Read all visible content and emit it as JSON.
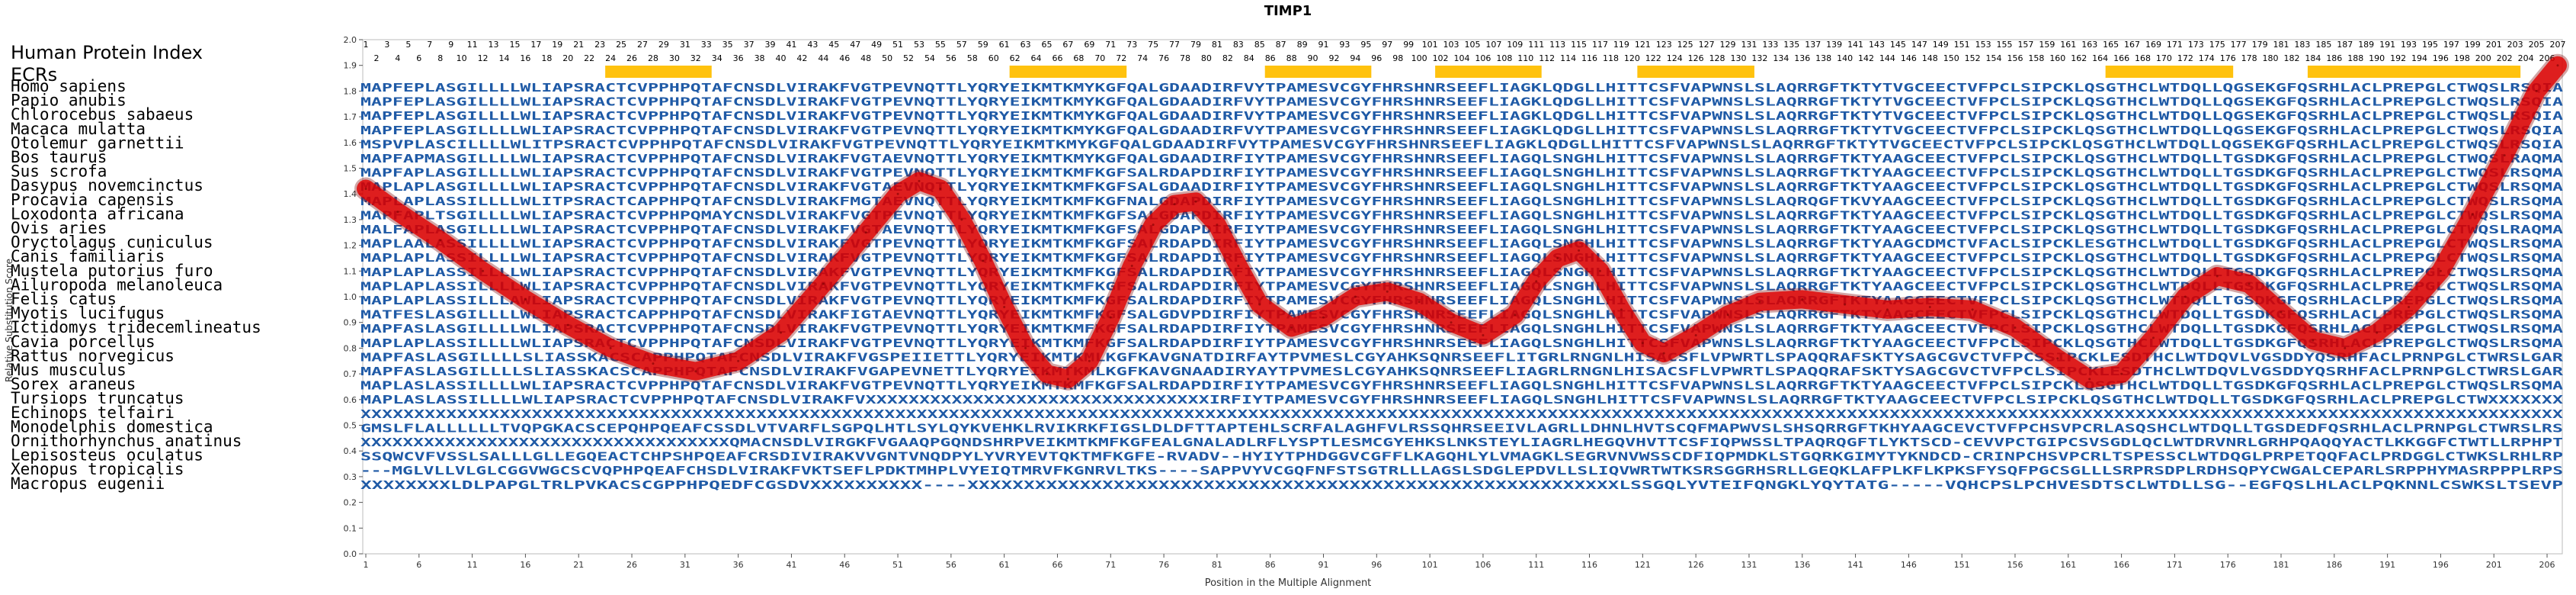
{
  "chart_data": {
    "type": "line",
    "title": "TIMP1",
    "xlabel": "Position in the Multiple Alignment",
    "ylabel": "Relative Substitution Score",
    "ylim": [
      0.0,
      2.0
    ],
    "y_ticks": [
      0.0,
      0.1,
      0.2,
      0.3,
      0.4,
      0.5,
      0.6,
      0.7,
      0.8,
      0.9,
      1.0,
      1.1,
      1.2,
      1.3,
      1.4,
      1.5,
      1.6,
      1.7,
      1.8,
      1.9,
      2.0
    ],
    "xlim": [
      1,
      207
    ],
    "x_ticks": [
      1,
      6,
      11,
      16,
      21,
      26,
      31,
      36,
      41,
      46,
      51,
      56,
      61,
      66,
      71,
      76,
      81,
      86,
      91,
      96,
      101,
      106,
      111,
      116,
      121,
      126,
      131,
      136,
      141,
      146,
      151,
      156,
      161,
      166,
      171,
      176,
      181,
      186,
      191,
      196,
      201,
      206
    ],
    "index_label": "Human Protein Index",
    "ecr_label": "ECRs",
    "index_numbers": [
      1,
      3,
      5,
      7,
      9,
      11,
      13,
      15,
      17,
      19,
      21,
      23,
      25,
      27,
      29,
      31,
      33,
      35,
      37,
      39,
      41,
      43,
      45,
      47,
      49,
      51,
      53,
      55,
      57,
      59,
      61,
      63,
      65,
      67,
      69,
      71,
      73,
      75,
      77,
      79,
      81,
      83,
      85,
      87,
      89,
      91,
      93,
      95,
      97,
      99,
      101,
      103,
      105,
      107,
      109,
      111,
      113,
      115,
      117,
      119,
      121,
      123,
      125,
      127,
      129,
      131,
      133,
      135,
      137,
      139,
      141,
      143,
      145,
      147,
      149,
      151,
      153,
      155,
      157,
      159,
      161,
      163,
      165,
      167,
      169,
      171,
      173,
      175,
      177,
      179,
      181,
      183,
      185,
      187,
      189,
      191,
      193,
      195,
      197,
      199,
      201,
      203,
      205,
      207
    ],
    "ecr_regions": [
      [
        24,
        33
      ],
      [
        62,
        72
      ],
      [
        86,
        95
      ],
      [
        102,
        111
      ],
      [
        121,
        131
      ],
      [
        165,
        176
      ],
      [
        184,
        203
      ]
    ],
    "sequences": [
      {
        "name": "Homo sapiens",
        "seq": "MAPFEPLASGILLLLWLIAPSRACTCVPPHPQTAFCNSDLVIRAKFVGTPEVNQTTLYQRYEIKMTKMYKGFQALGDAADIRFVYTPAMESVCGYFHRSHNRSEEFLIAGKLQDGLLHITTCSFVAPWNSLSLAQRRGFTKTYTVGCEECTVFPCLSIPCKLQSGTHCLWTDQLLQGSEKGFQSRHLACLPREPGLCTWQSLRSQIA"
      },
      {
        "name": "Papio anubis",
        "seq": "MAPFEPLASGILLLLWLIAPSRACTCVPPHPQTAFCNSDLVIRAKFVGTPEVNQTTLYQRYEIKMTKMYKGFQALGDAADIRFVYTPAMESVCGYFHRSHNRSEEFLIAGKLQDGLLHITTCSFVAPWNSLSLAQRRGFTKTYTVGCEECTVFPCLSIPCKLQSGTHCLWTDQLLQGSEKGFQSRHLACLPREPGLCTWQSLRSQIA"
      },
      {
        "name": "Chlorocebus sabaeus",
        "seq": "MAPFEPLASGILLLLWLIAPSRACTCVPPHPQTAFCNSDLVIRAKFVGTPEVNQTTLYQRYEIKMTKMYKGFQALGDAADIRFVYTPAMESVCGYFHRSHNRSEEFLIAGKLQDGLLHITTCSFVAPWNSLSLAQRRGFTKTYTVGCEECTVFPCLSIPCKLQSGTHCLWTDQLLQGSEKGFQSRHLACLPREPGLCTWQSLRSQIA"
      },
      {
        "name": "Macaca mulatta",
        "seq": "MAPFEPLASGILLLLWLIAPSRACTCVPPHPQTAFCNSDLVIRAKFVGTPEVNQTTLYQRYEIKMTKMYKGFQALGDAADIRFVYTPAMESVCGYFHRSHNRSEEFLIAGKLQDGLLHITTCSFVAPWNSLSLAQRRGFTKTYTVGCEECTVFPCLSIPCKLQSGTHCLWTDQLLQGSEKGFQSRHLACLPREPGLCTWQSLRSQIA"
      },
      {
        "name": "Otolemur garnettii",
        "seq": "MSPVPLASCILLLLWLITPSRACTCVPPHPQTAFCNSDLVIRAKFVGTPEVNQTTLYQRYEIKMTKMYKGFQALGDAADIRFVYTPAMESVCGYFHRSHNRSEEFLIAGKLQDGLLHITTCSFVAPWNSLSLAQRRGFTKTYTVGCEECTVFPCLSIPCKLQSGTHCLWTDQLLQGSEKGFQSRHLACLPREPGLCTWQSLRSQIA"
      },
      {
        "name": "Bos taurus",
        "seq": "MAPFAPMASGILLLLWLIAPSRACTCVPPHPQTAFCNSDLVIRAKFVGTAEVNQTTLYQRYEIKMTKMYKGFQALGDAADIRFIYTPAMESVCGYFHRSHNRSEEFLIAGQLSNGHLHITTCSFVAPWNSLSLAQRRGFTKTYAAGCEECTVFPCLSIPCKLQSGTHCLWTDQLLTGSDKGFQSRHLACLPREPGLCTWQSLRAQMA"
      },
      {
        "name": "Sus scrofa",
        "seq": "MAPFAPLASGILLLLWLIAPSRACTCVPPHPQTAFCNSDLVIRAKFVGTPEVNQTTLYQRYEIKMTKMFKGFSALRDAPDIRFIYTPAMESVCGYFHRSHNRSEEFLIAGQLSNGHLHITTCSFVAPWNSLSLAQRRGFTKTYAAGCEECTVFPCLSIPCKLQSGTHCLWTDQLLTGSDKGFQSRHLACLPREPGLCTWQSLRSQMA"
      },
      {
        "name": "Dasypus novemcinctus",
        "seq": "MAPLAPLASGILLLLWLIAPSRACTCVPPHPQTAFCNSDLVIRAKFVGTAEVNQTTLYQRYEIKMTKMFKGFSALGDAADIRFIYTPAMESVCGYFHRSHNRSEEFLIAGQLSNGHLHITTCSFVAPWNSLSLAQRRGFTKTYAAGCEECTVFPCLSIPCKLQSGTHCLWTDQLLTGSDKGFQSRHLACLPREPGLCTWQSLRSQMA"
      },
      {
        "name": "Procavia capensis",
        "seq": "MAPLAPLASSILLLLWLITPSRACTCAPPHPQTAFCNSDLVIRAKFMGTAEVNQTTLYQRYEIKMTKMFKGFNALGDAPDIRFIYTPAMESVCGYFHRSHNRSEEFLIAGQLSNGHLHITTCSFVAPWNSLSLAQRQGFTKVYAAGCEECTVFPCLSIPCKLQSGTHCLWTDQLLTGSDKGFQSRHLACLPREPGLCTWQSLRSQMA"
      },
      {
        "name": "Loxodonta africana",
        "seq": "MAPFAPLTSGILLLLWLIAPSRACTCVPPHPQMAYCNSDLVIRAKFVGTPEVNQTTLYQRYEIKMTKMFKGFSALGDAPDIRFIYTPAMESVCGYFHRSHNRSEEFLIAGQLSNGHLHITTCSFVAPWNSLSLAQRRGFTKTYAAGCEECTVFPCLSIPCKLQSGTHCLWTDQLLTGSDKGFQSRHLACLPREPGLCTWQSLRSQMA"
      },
      {
        "name": "Ovis aries",
        "seq": "MALFAPLASGILLLLWLIAPSRACTCVPPHPQTAFCNSDLVIRAKFVGTAEVNQTTLYQRYEIKMTKMFKGFSALGDAPDIRFIYTPAMESVCGYFHRSHNRSEEFLIAGQLSNGHLHITTCSFVAPWNSLSLAQRRGFTKTYAAGCEECTVFPCLSIPCKLQSGTHCLWTDQLLTGSDKGFQSRHLACLPREPGLCTWQSLRAQMA"
      },
      {
        "name": "Oryctolagus cuniculus",
        "seq": "MAPLAALASSILLLLWLIAPSRACTCVPPHPQTAFCNSDLVIRAKFVGTPEVNQTTLYQRYEIKMTKMFKGFSALRDAPDIRFIYTPAMESVCGYFHRSHNRSEEFLIAGQLSNGHLHITTCSFVAPWNSLSLAQRRGFTKTYAAGCDMCTVFACLSIPCKLESGTHCLWTDQLLTGSDKGFQSRHLACLPREPGLCTWQSLRSQMA"
      },
      {
        "name": "Canis familiaris",
        "seq": "MAPLAPLASSILLLLWLIAPSRACTCVPPHPQTAFCNSDLVIRAKFVGTPEVNQTTLYQRYEIKMTKMFKGFSALRDAPDIRFIYTPAMESVCGYFHRSHNRSEEFLIAGQLSNGHLHITTCSFVAPWNSLSLAQRRGFTKTYAAGCEECTVFPCLSIPCKLQSGTHCLWTDQLLTGSDKGFQSRHLACLPREPGLCTWQSLRSQMA"
      },
      {
        "name": "Mustela putorius furo",
        "seq": "MAPLAPLASSILLLLWLIAPSRACTCVPPHPQTAFCNSDLVIRAKFVGTPEVNQTTLYQRYEIKMTKMFKGFSALRDAPDIRFIYTPAMESVCGYFHRSHNRSEEFLIAGQLSNGHLHITTCSFVAPWNSLSLAQRRGFTKTYAAGCEECTVFPCLSIPCKLQSGTHCLWTDQLLTGSDKGFQSRHLACLPREPGLCTWQSLRSQMA"
      },
      {
        "name": "Ailuropoda melanoleuca",
        "seq": "MAPLAPLASSILLLLWLIAPSRACTCVPPHPQTAFCNSDLVIRAKFVGTPEVNQTTLYQRYEIKMTKMFKGFSALRDAPDIRFIYTPAMESVCGYFHRSHNRSEEFLIAGQLSNGHLHITTCSFVAPWNSLSLAQRRGFTKTYAAGCEECTVFPCLSIPCKLQSGTHCLWTDQLLTGSDKGFQSRHLACLPREPGLCTWQSLRSQMA"
      },
      {
        "name": "Felis catus",
        "seq": "MAPLAPLASSILLLAWLIAPSRACTCVPPHPQTAFCNSDLVIRAKFVGTPEVNQTTLYQRYEIKMTKMFKGFSALRDAPDIRFIYTPAMESVCGYFHRSHNRSEEFLIAGQLSNGHLHITTCSFVAPWNSLSLAQRRGFTKTYAAGCEECTVFPCLSIPCKLQSGTHCLWTDQLLTGSDKGFQSRHLACLPREPGLCTWQSLRSQMA"
      },
      {
        "name": "Myotis lucifugus",
        "seq": "MATFESLASGILLLLWLIAPSRACTCAPPHPQTAFCNSDLVIRAKFIGTAEVNQTTLYQRYEIKMTKMFKGFSALGDVPDIRFIYTPAMESVCGYFHRSHNRSEEFLIAGQLSNGHLHITTCSFVAPWNSLSLAQRRGFTKTYAAGCEECTVFPCLSIPCKLQSGTHCLWTDQLLTGSDKGFQSRHLACLPREPGLCTWQSLRSQMA"
      },
      {
        "name": "Ictidomys tridecemlineatus",
        "seq": "MAPFASLASGILLLLWLIAPSRACTCVPPHPQTAFCNSDLVIRAKFVGTPEVNQTTLYQRYEIKMTKMFKGFSALRDAPDIRFIYTPAMESVCGYFHRSHNRSEEFLIAGQLSNGHLHITTCSFVAPWNSLSLAQRRGFTKTYAAGCEECTVFPCLSIPCKLQSGTHCLWTDQLLTGSDKGFQSRHLACLPREPGLCTWQSLRSQMA"
      },
      {
        "name": "Cavia porcellus",
        "seq": "MAPLAPLASSILLLLWLIAPSRACTCVPPHPQTAFCNSDLVIRAKFVGTPEVNQTTLYQRYEIKMTKMFKGFSALRDAPDIRFIYTPAMESVCGYFHRSHNRSEEFLIAGQLSNGHLHITTCSFVAPWNSLSLAQRRGFTKTYAAGCEECTVFPCLSIPCKLQSGTHCLWTDQLLTGSDKGFQSRHLACLPREPGLCTWQSLRSQMA"
      },
      {
        "name": "Rattus norvegicus",
        "seq": "MAPFASLASGILLLLSLIASSKACSCAPPHPQTAFCNSDLVIRAKFVGSPEIIETTLYQRYEIKMTKMLKGFKAVGNATDIRFAYTPVMESLCGYAHKSQNRSEEFLITGRLRNGNLHISACSFLVPWRTLSPAQQRAFSKTYSAGCGVCTVFPCSSIPCKLESDTHCLWTDQVLVGSDDYQSRHFACLPRNPGLCTWRSLGAR"
      },
      {
        "name": "Mus musculus",
        "seq": "MAPFASLASGILLLLSLIASSKACSCAPPHPQTAFCNSDLVIRAKFVGAPEVNETTLYQRYEIKMTKMLKGFKAVGNAADIRYAYTPVMESLCGYAHKSQNRSEEFLIAGRLRNGNLHISACSFLVPWRTLSPAQQRAFSKTYSAGCGVCTVFPCLSIPCKLESDTHCLWTDQVLVGSDDYQSRHFACLPRNPGLCTWRSLGAR"
      },
      {
        "name": "Sorex araneus",
        "seq": "MAPLASLASSILLLLWLIAPSRACTCVPPHPQTAFCNSDLVIRAKFVGTPEVNQTTLYQRYEIKMTKMFKGFSALRDAPDIRFIYTPAMESVCGYFHRSHNRSEEFLIAGQLSNGHLHITTCSFVAPWNSLSLAQRRGFTKTYAAGCEECTVFPCLSIPCKLQSGTHCLWTDQLLTGSDKGFQSRHLACLPREPGLCTWQSLRSQMA"
      },
      {
        "name": "Tursiops truncatus",
        "seq": "MAPLASLASSILLLLWLIAPSRACTCVPPHPQTAFCNSDLVIRAKFVXXXXXXXXXXXXXXXXXXXXXXXXXXXXXXXXIRFIYTPAMESVCGYFHRSHNRSEEFLIAGQLSNGHLHITTCSFVAPWNSLSLAQRRGFTKTYAAGCEECTVFPCLSIPCKLQSGTHCLWTDQLLTGSDKGFQSRHLACLPREPGLCTWXXXXXXX"
      },
      {
        "name": "Echinops telfairi",
        "seq": "XXXXXXXXXXXXXXXXXXXXXXXXXXXXXXXXXXXXXXXXXXXXXXXXXXXXXXXXXXXXXXXXXXXXXXXXXXXXXXXXXXXXXXXXXXXXXXXXXXXXXXXXXXXXXXXXXXXXXXXXXXXXXXXXXXXXXXXXXXXXXXXXXXXXXXXXXXXXXXXXXXXXXXXXXXXXXXXXXXXXXXXXXXXXXXXXXXXXXXXXXXXXXX"
      },
      {
        "name": "Monodelphis domestica",
        "seq": "GMSLFLALLLLLLTVQPGKACSCEPQHPQEAFCSSDLVTVARFLSGPQLHTLSYLQYKVEHKLRVIKRKFIGSLDLDFTTAPTEHLSCRFALAGHFVLRSSQHRSEEIVLAGRLLDHNLHVTSCQFMAPWVSLSHSQRRGFTKHYAAGCEVCTVFPCHSVPCRLASQSHCLWTDQLLTGSDEDFQSRHLACLPRNPGLCTWRSLRS"
      },
      {
        "name": "Ornithorhynchus anatinus",
        "seq": "XXXXXXXXXXXXXXXXXXXXXXXXXXXXXXXXXXXQMACNSDLVIRGKFVGAAQPGQNDSHRPVEIKMTKMFKGFEALGNALADLRFLYSPTLESMCGYEHKSLNKSTEYLIAGRLHEGQVHVTTCSFIQPWSSLTPAQRQGFTLYKTSCD-CEVVPCTGIPCSVSGDLQCLWTDRVNRLGRHPQAQQYACTLKKGGFCTWTLLRPHPT"
      },
      {
        "name": "Lepisosteus oculatus",
        "seq": "SSQWCVFVSSLSALLLGLLEGQEACTCHPSHPQEAFCRSDIVIRAKVVGNTVNQDPYLYVRYEVTQKTMFKGFE-RVADV--HYIYTPHDGGVCGFFLKAGQHLYLVMAGKLSEGRVNVWSSCDFIQPMDKLSTGQRKGIMYTYKNDCD-CRINPCHSVPCRLTSPESSCLWTDQGLPRPETQQFACLPRDGGLCTWKSLRHLRP"
      },
      {
        "name": "Xenopus tropicalis",
        "seq": "---MGLVLLVLGLCGGVWGCSCVQPHPQEAFCHSDLVIRAKFVKTSEFLPDKTMHPLVYEIQTMRVFKGNRVLTKS----SAPPVYVCGQFNFSTSGTRLLLAGSLSDGLEPDVLLSLIQVWRTWTKSRSGGRHSRLLGEQKLAFPLKFLKPKSFYSQFPGCSGLLLSRPRSDPLRDHSQPYCWGALCEPARLSRPPHYMASRPPPLRPS"
      },
      {
        "name": "Macropus eugenii",
        "seq": "XXXXXXXXLDLPAPGLTRLPVKACSCGPPHPQEDFCGSDVXXXXXXXXXX----XXXXXXXXXXXXXXXXXXXXXXXXXXXXXXXXXXXXXXXXXXXXXXXXXXXXXXXXXXLSSGQLYVTEIFQNGKLYQYTATG-----VQHCPSLPCHVESDTSCLWTDLLSG--EGFQSLHLACLPQKNNLCSWKSLTSEVP"
      }
    ],
    "series": [
      {
        "x": [
          1,
          4,
          8,
          12,
          16,
          20,
          24,
          28,
          32,
          36,
          40,
          44,
          48,
          51,
          53,
          55,
          57,
          59,
          61,
          63,
          65,
          67,
          69,
          71,
          73,
          75,
          77,
          79,
          81,
          83,
          85,
          88,
          91,
          94,
          97,
          100,
          103,
          106,
          109,
          111,
          113,
          115,
          117,
          119,
          121,
          123,
          126,
          129,
          132,
          136,
          140,
          144,
          148,
          152,
          156,
          160,
          163,
          166,
          169,
          172,
          175,
          178,
          181,
          184,
          187,
          190,
          193,
          196,
          199,
          202,
          205,
          207
        ],
        "y": [
          1.42,
          1.33,
          1.22,
          1.1,
          0.99,
          0.89,
          0.8,
          0.74,
          0.71,
          0.75,
          0.86,
          1.05,
          1.25,
          1.4,
          1.45,
          1.42,
          1.3,
          1.14,
          0.96,
          0.8,
          0.7,
          0.68,
          0.75,
          0.92,
          1.12,
          1.28,
          1.36,
          1.37,
          1.28,
          1.12,
          0.97,
          0.88,
          0.92,
          1.0,
          1.02,
          0.98,
          0.9,
          0.85,
          0.93,
          1.06,
          1.15,
          1.18,
          1.1,
          0.95,
          0.82,
          0.78,
          0.85,
          0.93,
          0.98,
          0.99,
          0.97,
          0.95,
          0.96,
          0.95,
          0.88,
          0.76,
          0.68,
          0.7,
          0.84,
          1.0,
          1.08,
          1.05,
          0.94,
          0.83,
          0.8,
          0.86,
          0.96,
          1.1,
          1.32,
          1.55,
          1.8,
          1.9
        ]
      }
    ],
    "colors": {
      "ecr": "#ffc20e",
      "line": "#e00000",
      "line_edge": "#7a0000",
      "residue": "#1f5aa6",
      "title": "#000000",
      "axis": "#333333"
    }
  }
}
